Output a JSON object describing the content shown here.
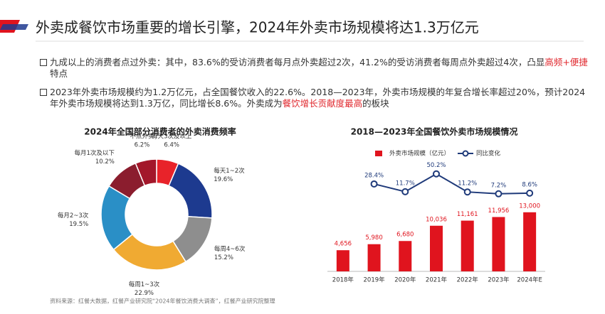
{
  "title": "外卖成餐饮市场重要的增长引擎，2024年外卖市场规模将达1.3万亿元",
  "bullets": [
    {
      "segments": [
        {
          "text": "九成以上的消费者点过外卖：其中，83.6%的受访消费者每月点外卖超过2次，41.2%的受访消费者每周点外卖超过4次，凸显",
          "color": "#333333"
        },
        {
          "text": "高频+便捷",
          "color": "#e0282e"
        },
        {
          "text": "特点",
          "color": "#333333"
        }
      ]
    },
    {
      "segments": [
        {
          "text": "2023年外卖市场规模约为1.2万亿元，占全国餐饮收入的22.6%。2018—2023年，外卖市场规模的年复合增长率超过20%，预计2024年外卖市场规模将达到1.3万亿，同比增长8.6%。外卖成为",
          "color": "#333333"
        },
        {
          "text": "餐饮增长贡献度最高",
          "color": "#e0282e"
        },
        {
          "text": "的板块",
          "color": "#333333"
        }
      ]
    }
  ],
  "source": "资料来源：红餐大数据，红餐产业研究院“2024年餐饮消费大调查”，红餐产业研究院整理",
  "chart_data": [
    {
      "type": "pie",
      "donut": true,
      "title": "2024年全国部分消费者的外卖消费频率",
      "categories": [
        "每天3次及以上",
        "每天1~2次",
        "每周4~6次",
        "每周1~3次",
        "每月2~3次",
        "每月1次及以下",
        "不点外卖"
      ],
      "values": [
        6.4,
        19.6,
        15.2,
        22.9,
        19.5,
        10.2,
        6.2
      ],
      "value_labels": [
        "6.4%",
        "19.6%",
        "15.2%",
        "22.9%",
        "19.5%",
        "10.2%",
        "6.2%"
      ],
      "colors": [
        "#e8232a",
        "#1d3a8f",
        "#8e8e8e",
        "#f0aa32",
        "#2a8fc6",
        "#8b1d2e",
        "#a3172a"
      ]
    },
    {
      "type": "combo",
      "title": "2018—2023年全国餐饮外卖市场规模情况",
      "categories": [
        "2018年",
        "2019年",
        "2020年",
        "2021年",
        "2022年",
        "2023年",
        "2024年E"
      ],
      "ylim": [
        0,
        25000
      ],
      "y2lim": [
        -160,
        85
      ],
      "series": [
        {
          "name": "外卖市场规模（亿元）",
          "type": "bar",
          "color": "#e0141e",
          "values": [
            4656,
            5980,
            6680,
            10036,
            11161,
            11956,
            13000
          ],
          "value_labels": [
            "4,656",
            "5,980",
            "6,680",
            "10,036",
            "11,161",
            "11,956",
            "13,000"
          ]
        },
        {
          "name": "同比变化",
          "type": "line",
          "axis": "y2",
          "color": "#1f3a7a",
          "values": [
            null,
            28.4,
            11.7,
            50.2,
            11.2,
            7.2,
            8.6
          ],
          "value_labels": [
            null,
            "28.4%",
            "11.7%",
            "50.2%",
            "11.2%",
            "7.2%",
            "8.6%"
          ]
        }
      ]
    }
  ]
}
